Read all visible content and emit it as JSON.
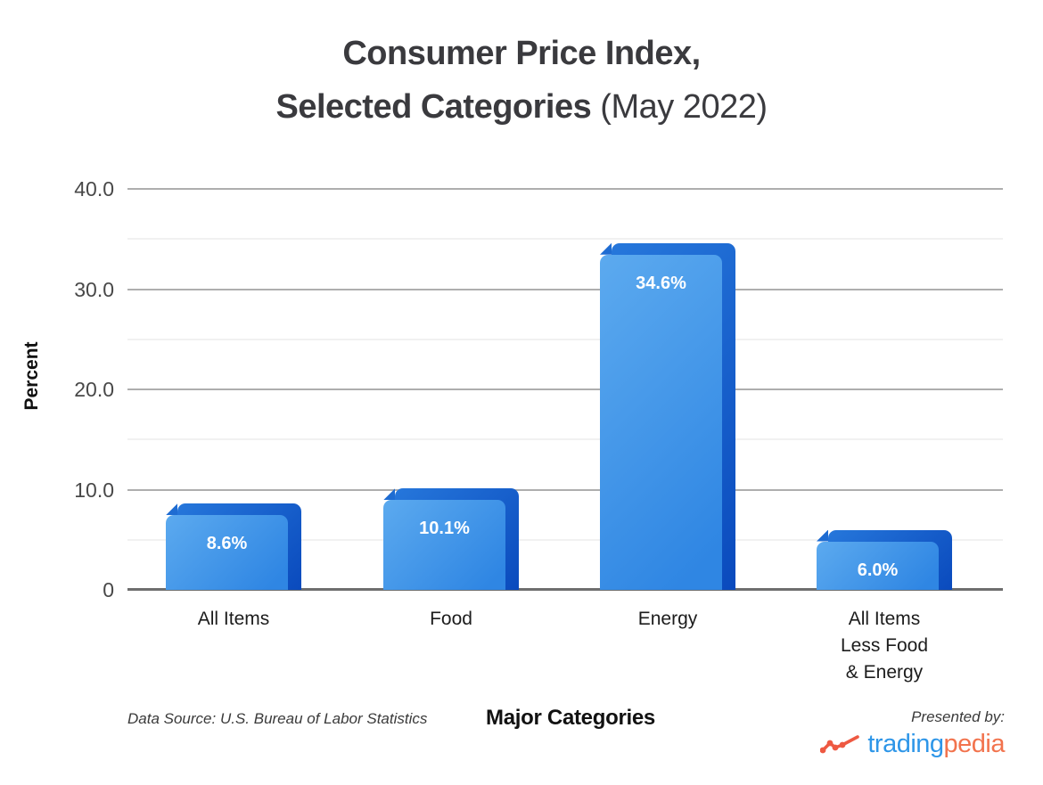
{
  "title": {
    "line1": "Consumer Price Index,",
    "line2_bold": "Selected Categories",
    "line2_regular": " (May 2022)"
  },
  "chart_data": {
    "type": "bar",
    "title": "Consumer Price Index, Selected Categories (May 2022)",
    "categories": [
      [
        "All Items"
      ],
      [
        "Food"
      ],
      [
        "Energy"
      ],
      [
        "All Items",
        "Less Food",
        "& Energy"
      ]
    ],
    "values": [
      8.6,
      10.1,
      34.6,
      6.0
    ],
    "value_labels": [
      "8.6%",
      "10.1%",
      "34.6%",
      "6.0%"
    ],
    "xlabel": "Major Categories",
    "ylabel": "Percent",
    "ylim": [
      0,
      40
    ],
    "ytick_values": [
      0,
      10,
      20,
      30,
      40
    ],
    "ytick_labels": [
      "0",
      "10.0",
      "20.0",
      "30.0",
      "40.0"
    ],
    "minor_grid_values": [
      5,
      15,
      25,
      35
    ],
    "grid": true,
    "legend": false,
    "colors": {
      "bar_front_gradient_start": "#5CAAEF",
      "bar_front_gradient_end": "#2F86E3",
      "bar_side_gradient_start": "#2677DB",
      "bar_side_gradient_end": "#0A4ABD",
      "value_label_text": "#FFFFFF",
      "major_gridline": "#AEAEAE",
      "minor_gridline": "#F1F1F1",
      "axis_line": "#6E6E6E"
    }
  },
  "footer": {
    "data_source": "Data Source: U.S. Bureau of Labor Statistics",
    "presented_by": "Presented by:",
    "brand": {
      "part1": "trading",
      "part2": "pedia",
      "part1_color": "#2E96E8",
      "part2_color": "#F2734D",
      "icon": "line-chart-icon",
      "icon_color": "#EE5942"
    }
  }
}
